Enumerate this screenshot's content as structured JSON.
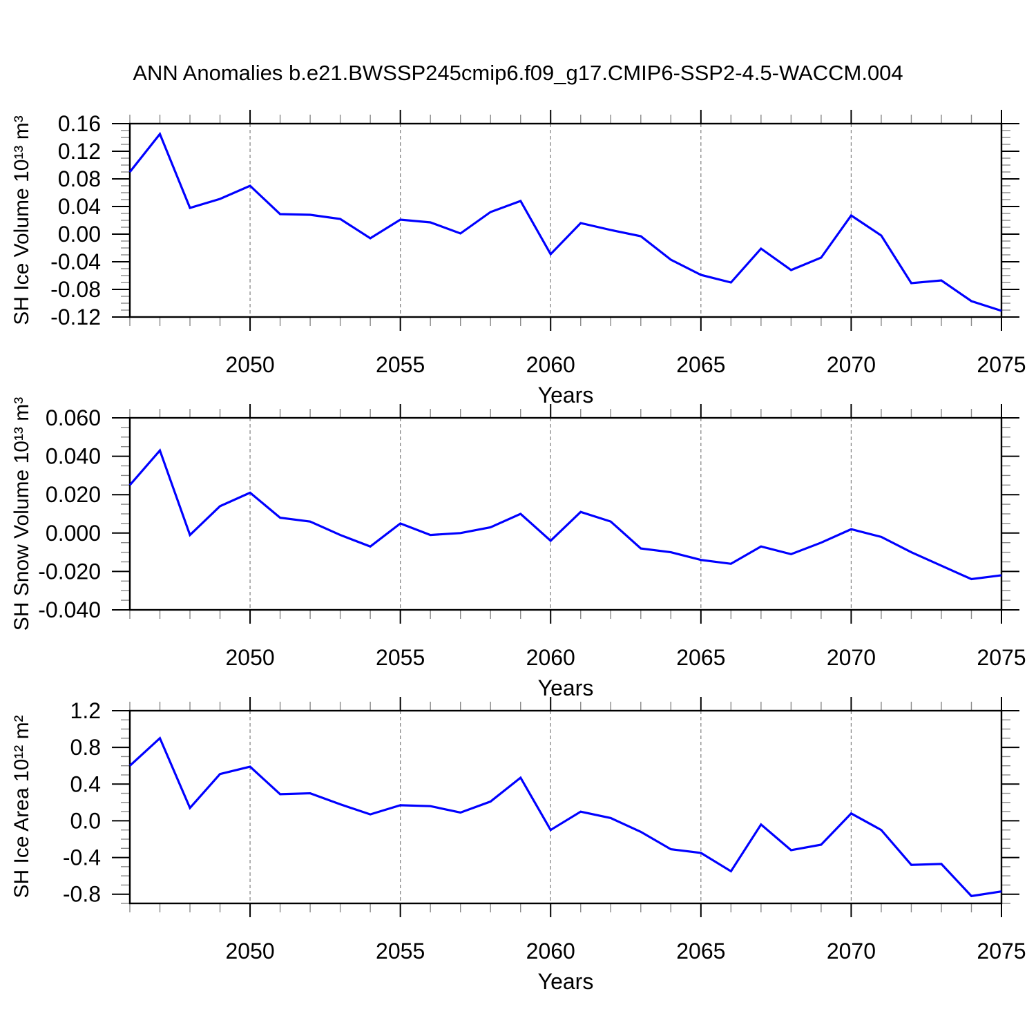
{
  "title": "ANN Anomalies b.e21.BWSSP245cmip6.f09_g17.CMIP6-SSP2-4.5-WACCM.004",
  "style": {
    "line_color": "#0000ff",
    "grid_color": "#808080",
    "frame_color": "#000000",
    "tick_minor_color": "#888888"
  },
  "x_axis": {
    "label": "Years",
    "start": 2046,
    "end": 2075,
    "major_step": 5,
    "minor_step": 1,
    "tick_labels": [
      "2050",
      "2055",
      "2060",
      "2065",
      "2070",
      "2075"
    ],
    "grid_years": [
      2050,
      2055,
      2060,
      2065,
      2070
    ]
  },
  "chart_data": [
    {
      "type": "line",
      "ylabel": "SH Ice Volume 10¹³ m³",
      "ylim": [
        -0.12,
        0.16
      ],
      "y_minor_step": 0.01,
      "yticks": [
        {
          "v": 0.16,
          "label": "0.16"
        },
        {
          "v": 0.12,
          "label": "0.12"
        },
        {
          "v": 0.08,
          "label": "0.08"
        },
        {
          "v": 0.04,
          "label": "0.04"
        },
        {
          "v": 0.0,
          "label": "0.00"
        },
        {
          "v": -0.04,
          "label": "-0.04"
        },
        {
          "v": -0.08,
          "label": "-0.08"
        },
        {
          "v": -0.12,
          "label": "-0.12"
        }
      ],
      "x": [
        2046,
        2047,
        2048,
        2049,
        2050,
        2051,
        2052,
        2053,
        2054,
        2055,
        2056,
        2057,
        2058,
        2059,
        2060,
        2061,
        2062,
        2063,
        2064,
        2065,
        2066,
        2067,
        2068,
        2069,
        2070,
        2071,
        2072,
        2073,
        2074,
        2075
      ],
      "values": [
        0.09,
        0.145,
        0.038,
        0.051,
        0.07,
        0.029,
        0.028,
        0.022,
        -0.006,
        0.021,
        0.017,
        0.001,
        0.032,
        0.048,
        -0.029,
        0.016,
        0.006,
        -0.003,
        -0.037,
        -0.059,
        -0.07,
        -0.021,
        -0.052,
        -0.034,
        0.027,
        -0.002,
        -0.071,
        -0.067,
        -0.097,
        -0.111
      ]
    },
    {
      "type": "line",
      "ylabel": "SH Snow Volume 10¹³ m³",
      "ylim": [
        -0.04,
        0.06
      ],
      "y_minor_step": 0.005,
      "yticks": [
        {
          "v": 0.06,
          "label": "0.060"
        },
        {
          "v": 0.04,
          "label": "0.040"
        },
        {
          "v": 0.02,
          "label": "0.020"
        },
        {
          "v": 0.0,
          "label": "0.000"
        },
        {
          "v": -0.02,
          "label": "-0.020"
        },
        {
          "v": -0.04,
          "label": "-0.040"
        }
      ],
      "x": [
        2046,
        2047,
        2048,
        2049,
        2050,
        2051,
        2052,
        2053,
        2054,
        2055,
        2056,
        2057,
        2058,
        2059,
        2060,
        2061,
        2062,
        2063,
        2064,
        2065,
        2066,
        2067,
        2068,
        2069,
        2070,
        2071,
        2072,
        2073,
        2074,
        2075
      ],
      "values": [
        0.025,
        0.043,
        -0.001,
        0.014,
        0.021,
        0.008,
        0.006,
        -0.001,
        -0.007,
        0.005,
        -0.001,
        0.0,
        0.003,
        0.01,
        -0.004,
        0.011,
        0.006,
        -0.008,
        -0.01,
        -0.014,
        -0.016,
        -0.007,
        -0.011,
        -0.005,
        0.002,
        -0.002,
        -0.01,
        -0.017,
        -0.024,
        -0.022
      ]
    },
    {
      "type": "line",
      "ylabel": "SH Ice Area 10¹² m²",
      "ylim": [
        -0.9,
        1.2
      ],
      "y_minor_step": 0.1,
      "yticks": [
        {
          "v": 1.2,
          "label": "1.2"
        },
        {
          "v": 0.8,
          "label": "0.8"
        },
        {
          "v": 0.4,
          "label": "0.4"
        },
        {
          "v": 0.0,
          "label": "0.0"
        },
        {
          "v": -0.4,
          "label": "-0.4"
        },
        {
          "v": -0.8,
          "label": "-0.8"
        }
      ],
      "x": [
        2046,
        2047,
        2048,
        2049,
        2050,
        2051,
        2052,
        2053,
        2054,
        2055,
        2056,
        2057,
        2058,
        2059,
        2060,
        2061,
        2062,
        2063,
        2064,
        2065,
        2066,
        2067,
        2068,
        2069,
        2070,
        2071,
        2072,
        2073,
        2074,
        2075
      ],
      "values": [
        0.6,
        0.9,
        0.14,
        0.51,
        0.59,
        0.29,
        0.3,
        0.18,
        0.07,
        0.17,
        0.16,
        0.09,
        0.21,
        0.47,
        -0.1,
        0.1,
        0.03,
        -0.12,
        -0.31,
        -0.35,
        -0.55,
        -0.04,
        -0.32,
        -0.26,
        0.08,
        -0.1,
        -0.48,
        -0.47,
        -0.82,
        -0.77
      ]
    }
  ]
}
